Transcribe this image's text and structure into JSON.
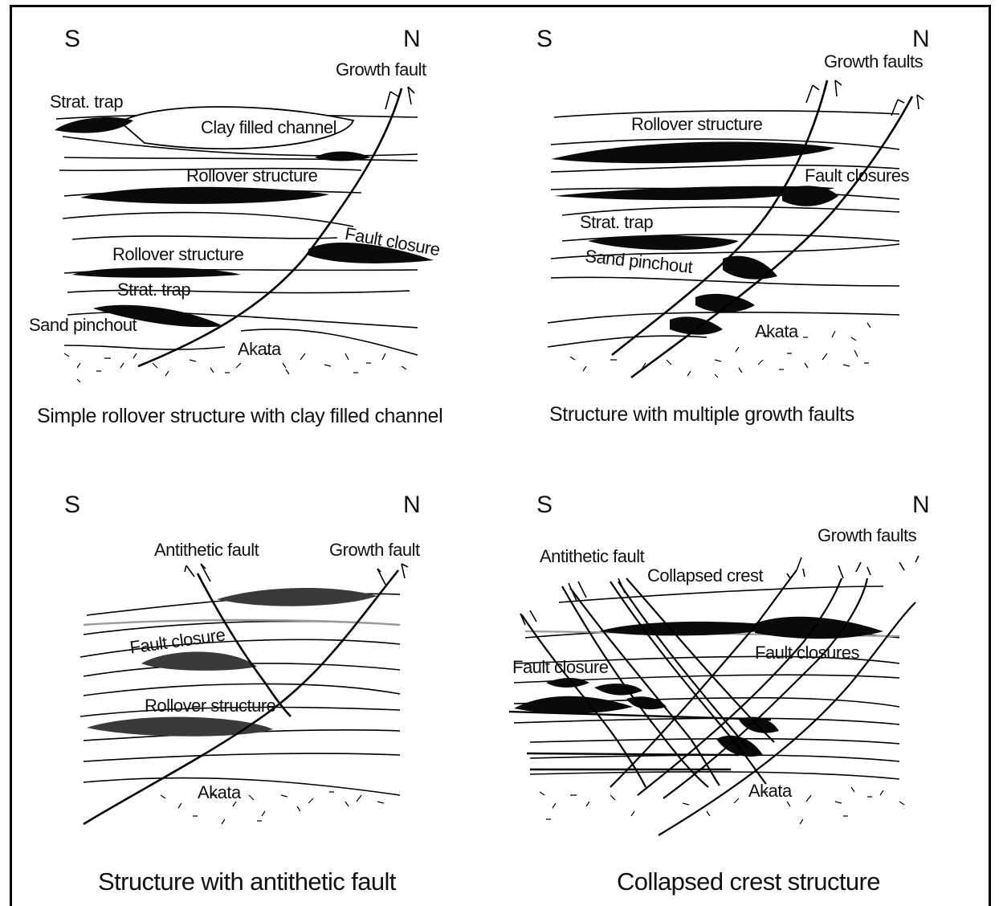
{
  "panels": [
    {
      "direction_left": "S",
      "direction_right": "N",
      "labels": {
        "growth_fault": "Growth fault",
        "strat_trap_top": "Strat. trap",
        "clay_filled_channel": "Clay filled channel",
        "rollover_upper": "Rollover structure",
        "fault_closure": "Fault closure",
        "rollover_lower": "Rollover structure",
        "strat_trap_lower": "Strat. trap",
        "sand_pinchout": "Sand pinchout",
        "akata": "Akata"
      },
      "caption": "Simple rollover structure with clay filled channel"
    },
    {
      "direction_left": "S",
      "direction_right": "N",
      "labels": {
        "growth_faults": "Growth faults",
        "rollover": "Rollover structure",
        "fault_closures": "Fault closures",
        "strat_trap": "Strat. trap",
        "sand_pinchout": "Sand pinchout",
        "akata": "Akata"
      },
      "caption": "Structure with multiple growth faults"
    },
    {
      "direction_left": "S",
      "direction_right": "N",
      "labels": {
        "antithetic_fault": "Antithetic fault",
        "growth_fault": "Growth fault",
        "fault_closure": "Fault closure",
        "rollover": "Rollover structure",
        "akata": "Akata"
      },
      "caption": "Structure with antithetic fault"
    },
    {
      "direction_left": "S",
      "direction_right": "N",
      "labels": {
        "growth_faults": "Growth faults",
        "antithetic_fault": "Antithetic fault",
        "collapsed_crest": "Collapsed crest",
        "fault_closures": "Fault closures",
        "fault_closure": "Fault closure",
        "akata": "Akata"
      },
      "caption": "Collapsed crest structure"
    }
  ],
  "colors": {
    "ink": "#000000",
    "reservoir_dark": "#111111",
    "reservoir_grey": "#3a3a3a",
    "bed_grey": "#9a9a9a"
  }
}
